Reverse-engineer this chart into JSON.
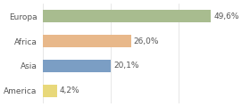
{
  "categories": [
    "Europa",
    "Africa",
    "Asia",
    "America"
  ],
  "values": [
    49.6,
    26.0,
    20.1,
    4.2
  ],
  "labels": [
    "49,6%",
    "26,0%",
    "20,1%",
    "4,2%"
  ],
  "bar_colors": [
    "#a8bc8f",
    "#e8b88a",
    "#7b9ec4",
    "#e8d87a"
  ],
  "background_color": "#ffffff",
  "grid_color": "#dddddd",
  "xlim": [
    0,
    60
  ],
  "bar_height": 0.5,
  "label_fontsize": 6.5,
  "tick_fontsize": 6.5,
  "figsize": [
    2.8,
    1.2
  ],
  "dpi": 100
}
